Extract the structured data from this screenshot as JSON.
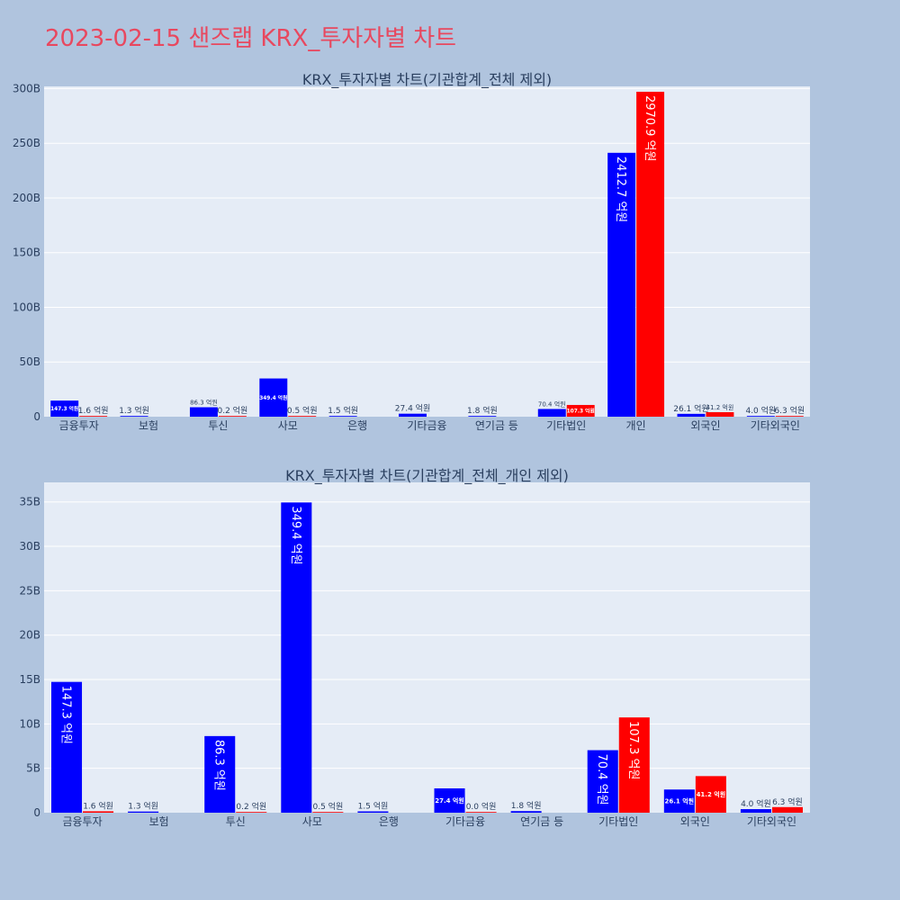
{
  "title": "2023-02-15 샌즈랩 KRX_투자자별 차트",
  "colors": {
    "background": "#b0c4de",
    "plot_bg": "#e5ecf6",
    "title": "#e8485f",
    "series_a": "#0000ff",
    "series_b": "#ff0000"
  },
  "chart_data": [
    {
      "type": "bar",
      "title": "KRX_투자자별 차트(기관합계_전체 제외)",
      "categories": [
        "금융투자",
        "보험",
        "투신",
        "사모",
        "은행",
        "기타금융",
        "연기금 등",
        "기타법인",
        "개인",
        "외국인",
        "기타외국인"
      ],
      "yticks": [
        "0",
        "50B",
        "100B",
        "150B",
        "200B",
        "250B",
        "300B"
      ],
      "ytick_values": [
        0,
        50,
        100,
        150,
        200,
        250,
        300
      ],
      "ylim": [
        0,
        302
      ],
      "unit_scale": "B",
      "grid": true,
      "series": [
        {
          "color": "#0000ff",
          "values": [
            14.73,
            0.13,
            8.63,
            34.94,
            0.15,
            2.74,
            0.18,
            7.04,
            241.27,
            2.61,
            0.4
          ],
          "labels": [
            "147.3 억원",
            "1.3 억원",
            "86.3 억원",
            "349.4 억원",
            "1.5 억원",
            "27.4 억원",
            "1.8 억원",
            "70.4 억원",
            "2412.7 억원",
            "26.1 억원",
            "4.0 억원"
          ]
        },
        {
          "color": "#ff0000",
          "values": [
            0.16,
            null,
            0.02,
            0.05,
            null,
            null,
            null,
            10.73,
            297.09,
            4.12,
            0.63
          ],
          "labels": [
            "1.6 억원",
            "",
            "0.2 억원",
            "0.5 억원",
            "",
            "",
            "",
            "107.3 억원",
            "2970.9 억원",
            "41.2 억원",
            "6.3 억원"
          ]
        }
      ]
    },
    {
      "type": "bar",
      "title": "KRX_투자자별 차트(기관합계_전체_개인 제외)",
      "categories": [
        "금융투자",
        "보험",
        "투신",
        "사모",
        "은행",
        "기타금융",
        "연기금 등",
        "기타법인",
        "외국인",
        "기타외국인"
      ],
      "yticks": [
        "0",
        "5B",
        "10B",
        "15B",
        "20B",
        "25B",
        "30B",
        "35B"
      ],
      "ytick_values": [
        0,
        5,
        10,
        15,
        20,
        25,
        30,
        35
      ],
      "ylim": [
        0,
        37.2
      ],
      "unit_scale": "B",
      "grid": true,
      "series": [
        {
          "color": "#0000ff",
          "values": [
            14.73,
            0.13,
            8.63,
            34.94,
            0.15,
            2.74,
            0.18,
            7.04,
            2.61,
            0.4
          ],
          "labels": [
            "147.3 억원",
            "1.3 억원",
            "86.3 억원",
            "349.4 억원",
            "1.5 억원",
            "27.4 억원",
            "1.8 억원",
            "70.4 억원",
            "26.1 억원",
            "4.0 억원"
          ]
        },
        {
          "color": "#ff0000",
          "values": [
            0.16,
            null,
            0.02,
            0.05,
            null,
            0.0,
            null,
            10.73,
            4.12,
            0.63
          ],
          "labels": [
            "1.6 억원",
            "",
            "0.2 억원",
            "0.5 억원",
            "",
            "0.0 억원",
            "",
            "107.3 억원",
            "41.2 억원",
            "6.3 억원"
          ]
        }
      ]
    }
  ]
}
